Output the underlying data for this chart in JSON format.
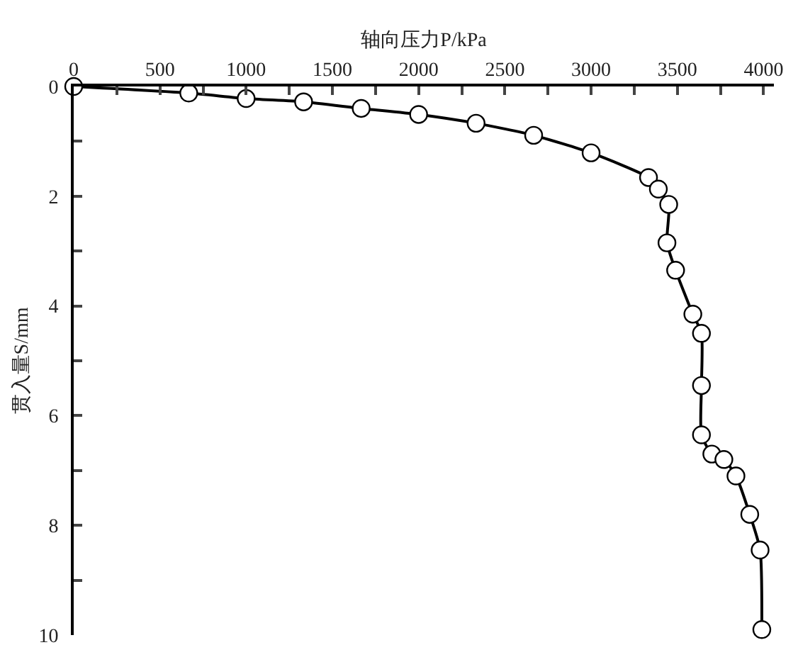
{
  "chart_data": {
    "type": "line",
    "xlabel": "轴向压力P/kPa",
    "ylabel": "贯入量S/mm",
    "x": [
      0,
      667,
      1000,
      1333,
      1667,
      2000,
      2333,
      2667,
      3000,
      3333,
      3390,
      3450,
      3440,
      3490,
      3590,
      3640,
      3640,
      3640,
      3700,
      3770,
      3840,
      3920,
      3980,
      3990
    ],
    "series": [
      {
        "color": "#000000",
        "values": [
          0,
          0.12,
          0.22,
          0.28,
          0.4,
          0.51,
          0.67,
          0.89,
          1.21,
          1.66,
          1.87,
          2.15,
          2.85,
          3.35,
          4.15,
          4.5,
          5.45,
          6.35,
          6.7,
          6.8,
          7.1,
          7.8,
          8.45,
          9.9
        ]
      }
    ],
    "xlim": [
      0,
      4060
    ],
    "ylim": [
      10,
      0
    ],
    "xticks": [
      0,
      {
        "value": 250,
        "label": null
      },
      500,
      {
        "value": 750,
        "label": null
      },
      1000,
      {
        "value": 1250,
        "label": null
      },
      1500,
      {
        "value": 1750,
        "label": null
      },
      2000,
      {
        "value": 2250,
        "label": null
      },
      2500,
      {
        "value": 2750,
        "label": null
      },
      3000,
      {
        "value": 3250,
        "label": null
      },
      3500,
      {
        "value": 3750,
        "label": null
      },
      4000
    ],
    "yticks": [
      0,
      {
        "value": 1,
        "label": null
      },
      2,
      {
        "value": 3,
        "label": null
      },
      4,
      {
        "value": 5,
        "label": null
      },
      6,
      {
        "value": 7,
        "label": null
      },
      8,
      {
        "value": 9,
        "label": null
      },
      10
    ],
    "legend": false,
    "marker": "circle",
    "line_style": "solid"
  }
}
